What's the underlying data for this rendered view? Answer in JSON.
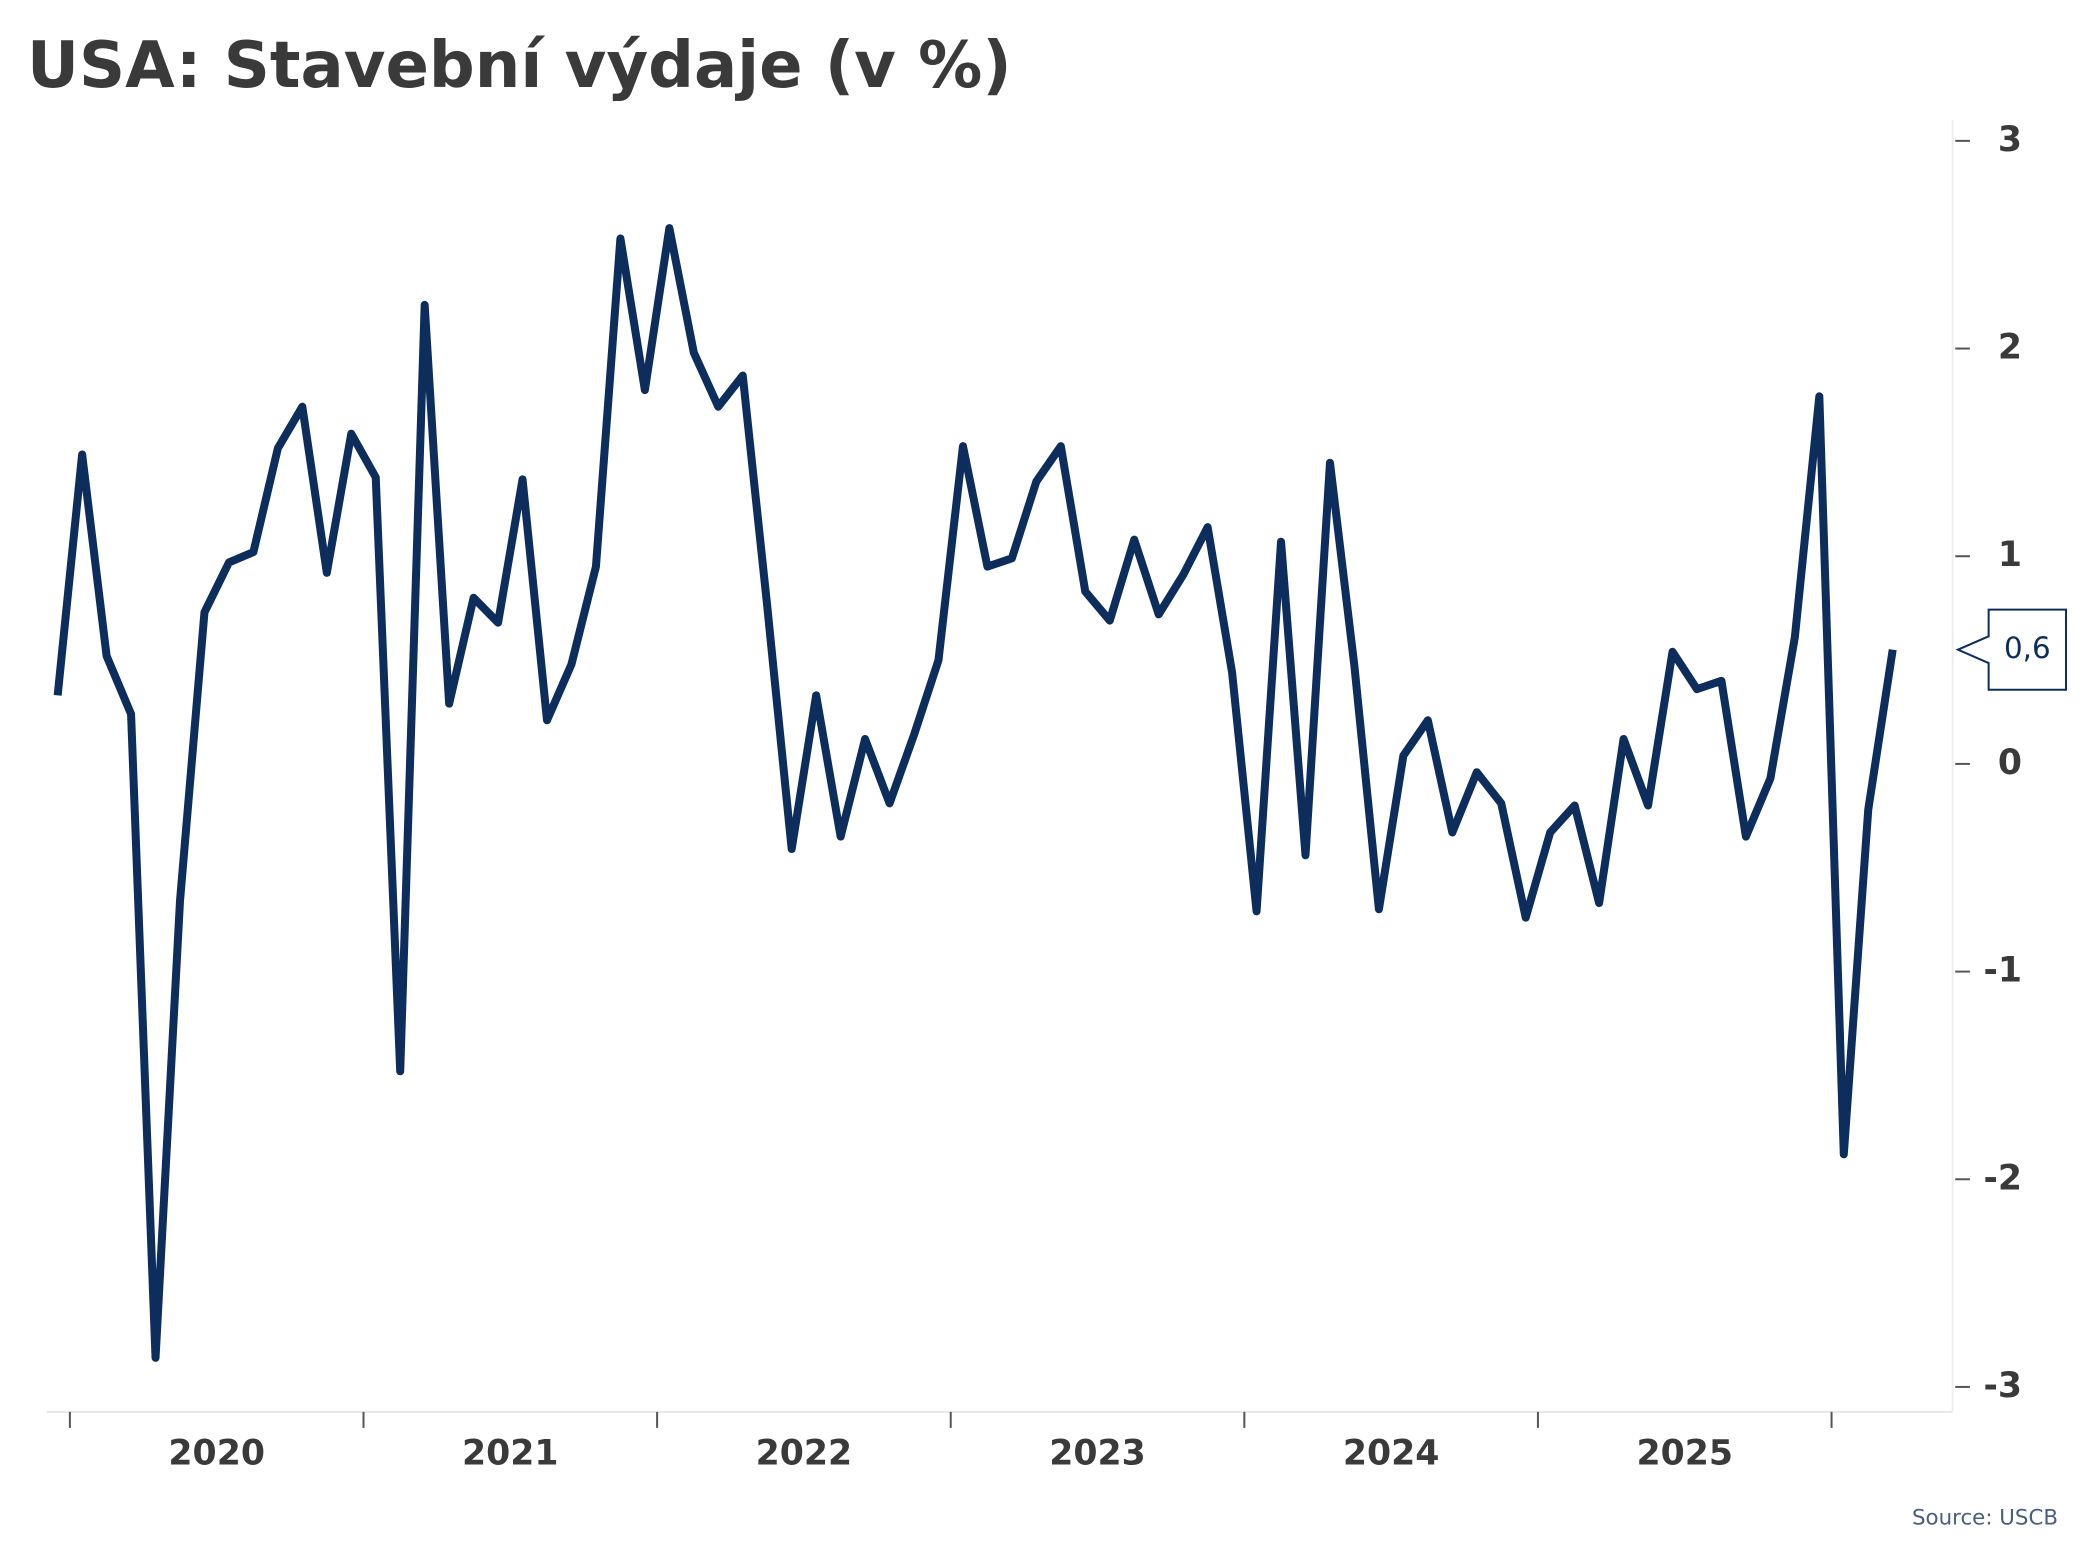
{
  "chart_data": {
    "type": "line",
    "title": "USA: Stavební výdaje (v %)",
    "source": "Source: USCB",
    "categories": [
      null,
      null,
      null,
      null,
      null,
      null,
      "2020",
      null,
      null,
      null,
      null,
      null,
      null,
      null,
      null,
      null,
      null,
      null,
      "2021",
      null,
      null,
      null,
      null,
      null,
      null,
      null,
      null,
      null,
      null,
      null,
      "2022",
      null,
      null,
      null,
      null,
      null,
      null,
      null,
      null,
      null,
      null,
      null,
      "2023",
      null,
      null,
      null,
      null,
      null,
      null,
      null,
      null,
      null,
      null,
      null,
      "2024",
      null,
      null,
      null,
      null,
      null,
      null,
      null,
      null,
      null,
      null,
      null,
      "2025",
      null,
      null,
      null,
      null,
      null,
      null,
      null,
      null,
      null
    ],
    "series": [
      {
        "color": "#0d2d5c",
        "values": [
          0.33,
          1.49,
          0.52,
          0.24,
          -2.86,
          -0.66,
          0.73,
          0.97,
          1.02,
          1.52,
          1.72,
          0.92,
          1.59,
          1.38,
          -1.48,
          2.21,
          0.29,
          0.8,
          0.68,
          1.37,
          0.21,
          0.48,
          0.95,
          2.53,
          1.8,
          2.58,
          1.98,
          1.72,
          1.87,
          0.76,
          -0.41,
          0.33,
          -0.35,
          0.12,
          -0.19,
          0.14,
          0.5,
          1.53,
          0.95,
          0.99,
          1.36,
          1.53,
          0.83,
          0.69,
          1.08,
          0.72,
          0.91,
          1.14,
          0.44,
          -0.71,
          1.07,
          -0.44,
          1.45,
          0.47,
          -0.7,
          0.04,
          0.21,
          -0.33,
          -0.04,
          -0.19,
          -0.74,
          -0.33,
          -0.2,
          -0.67,
          0.12,
          -0.2,
          0.54,
          0.36,
          0.4,
          -0.35,
          -0.07,
          0.61,
          1.77,
          -1.88,
          -0.22,
          0.55
        ],
        "value_labels": [
          null,
          null,
          null,
          null,
          null,
          null,
          null,
          null,
          null,
          null,
          null,
          null,
          null,
          null,
          null,
          null,
          null,
          null,
          null,
          null,
          null,
          null,
          null,
          null,
          null,
          null,
          null,
          null,
          null,
          null,
          null,
          null,
          null,
          null,
          null,
          null,
          null,
          null,
          null,
          null,
          null,
          null,
          null,
          null,
          null,
          null,
          null,
          null,
          null,
          null,
          null,
          null,
          null,
          null,
          null,
          null,
          null,
          null,
          null,
          null,
          null,
          null,
          null,
          null,
          null,
          null,
          null,
          null,
          null,
          null,
          null,
          null,
          null,
          null,
          null,
          "0,6"
        ]
      }
    ],
    "ylim": [
      -3.12,
      3.1
    ],
    "yticks": [
      -3,
      -2,
      -1,
      0,
      1,
      2,
      3
    ]
  }
}
